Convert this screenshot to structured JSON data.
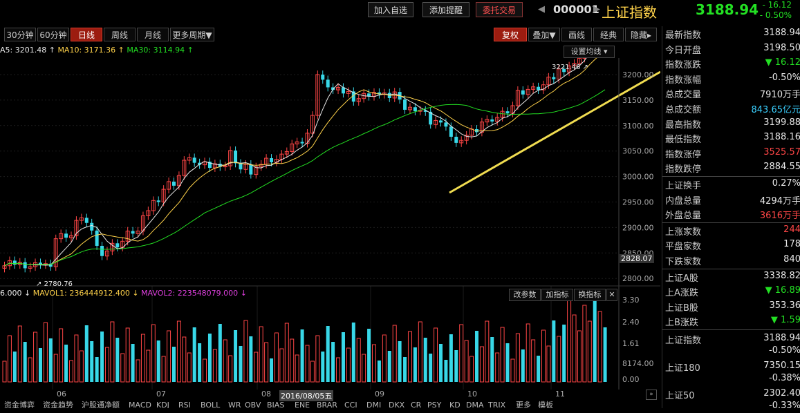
{
  "topbar": {
    "add_watch": "加入自选",
    "add_alert": "添加提醒",
    "entrust": "委托交易",
    "code": "000001",
    "name": "上证指数",
    "price": "3188.94",
    "change": "- 16.12",
    "change_pct": "- 0.50%"
  },
  "periods": [
    "30分钟",
    "60分钟",
    "日线",
    "周线",
    "月线",
    "更多周期▼"
  ],
  "active_period": "日线",
  "chart_tools": [
    "复权",
    "叠加▼",
    "画线",
    "经典",
    "隐藏▸"
  ],
  "ma_legend": {
    "ma5": "A5: 3201.48",
    "ma10": "MA10: 3171.36",
    "ma30": "MA30: 3114.94"
  },
  "set_ma_label": "设置均线",
  "price_axis": [
    "3200.00",
    "3150.00",
    "3100.00",
    "3050.00",
    "3000.00",
    "2950.00",
    "2900.00",
    "2850.00",
    "2800.00"
  ],
  "current_price_tag": "2828.07",
  "high_annotation": "3221.46",
  "low_annotation": "2780.76",
  "volume_legend": {
    "v0": "6.000",
    "mavol1": "MAVOL1: 236444912.400",
    "mavol2": "MAVOL2: 223548079.000"
  },
  "volume_buttons": [
    "改参数",
    "加指标",
    "换指标"
  ],
  "volume_axis": [
    "3.30",
    "2.40",
    "1.61",
    "8174.00",
    "0.00"
  ],
  "date_axis": [
    "06",
    "07",
    "08",
    "09",
    "10",
    "11"
  ],
  "date_cursor": "2016/08/05五",
  "bottom_tabs": [
    "资金博弈",
    "资金趋势",
    "沪股通净额",
    "MACD",
    "KDJ",
    "RSI",
    "BOLL",
    "WR",
    "OBV",
    "BIAS",
    "ENE",
    "BRAR",
    "CCI",
    "DMI",
    "DKX",
    "CR",
    "PSY",
    "KD",
    "DMA",
    "TRIX",
    "更多",
    "模板"
  ],
  "quote_panel": [
    {
      "label": "最新指数",
      "value": "3188.94",
      "cls": "white"
    },
    {
      "label": "今日开盘",
      "value": "3198.50",
      "cls": "white"
    },
    {
      "label": "指数涨跌",
      "value": "▼ 16.12",
      "cls": "down"
    },
    {
      "label": "指数涨幅",
      "value": "-0.50%",
      "cls": "white"
    },
    {
      "label": "总成交量",
      "value": "7910万手",
      "cls": "white"
    },
    {
      "label": "总成交额",
      "value": "843.65亿元",
      "cls": "cyan"
    },
    {
      "label": "最高指数",
      "value": "3199.88",
      "cls": "white"
    },
    {
      "label": "最低指数",
      "value": "3188.16",
      "cls": "white"
    },
    {
      "label": "指数涨停",
      "value": "3525.57",
      "cls": "up"
    },
    {
      "label": "指数跌停",
      "value": "2884.55",
      "cls": "white"
    }
  ],
  "quote_panel2": [
    {
      "label": "上证换手",
      "value": "0.27%",
      "cls": "white"
    },
    {
      "label": "内盘总量",
      "value": "4294万手",
      "cls": "white"
    },
    {
      "label": "外盘总量",
      "value": "3616万手",
      "cls": "up"
    }
  ],
  "quote_panel3": [
    {
      "label": "上涨家数",
      "value": "244",
      "cls": "up"
    },
    {
      "label": "平盘家数",
      "value": "178",
      "cls": "white"
    },
    {
      "label": "下跌家数",
      "value": "840",
      "cls": "white"
    }
  ],
  "quote_panel4": [
    {
      "label": "上证A股",
      "value": "3338.82",
      "cls": "white"
    },
    {
      "label": "上A涨跌",
      "value": "▼ 16.89",
      "cls": "down"
    },
    {
      "label": "上证B股",
      "value": "353.36",
      "cls": "white"
    },
    {
      "label": "上B涨跌",
      "value": "▼ 1.59",
      "cls": "down"
    }
  ],
  "index_list": [
    {
      "label": "上证指数",
      "value": "3188.94",
      "pct": "-0.50%"
    },
    {
      "label": "上证180",
      "value": "7350.15",
      "pct": "-0.38%"
    },
    {
      "label": "上证50",
      "value": "2302.40",
      "pct": "-0.33%"
    }
  ],
  "colors": {
    "up": "#ff4646",
    "down": "#23e023",
    "accent": "#9c1c10",
    "volume_down": "#38d8e8",
    "trendline": "#f0dc50"
  }
}
